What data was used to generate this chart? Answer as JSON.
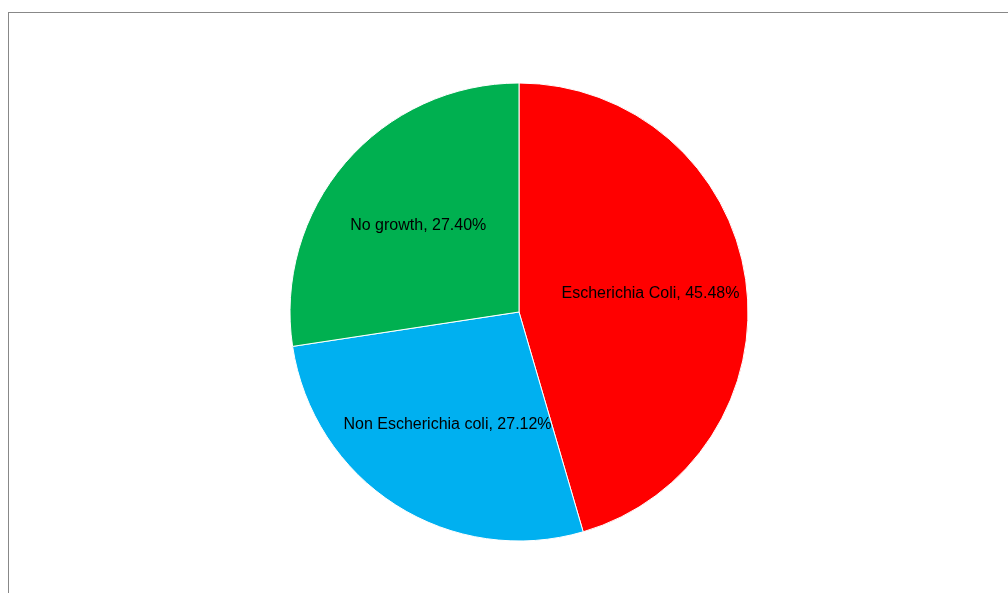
{
  "chart_data": {
    "type": "pie",
    "categories": [
      "Escherichia Coli",
      "Non Escherichia coli",
      "No growth"
    ],
    "values": [
      45.48,
      27.12,
      27.4
    ],
    "value_labels": [
      "45.48%",
      "27.12%",
      "27.40%"
    ],
    "colors": [
      "#ff0000",
      "#00b0f0",
      "#00b050"
    ],
    "legend": false
  }
}
